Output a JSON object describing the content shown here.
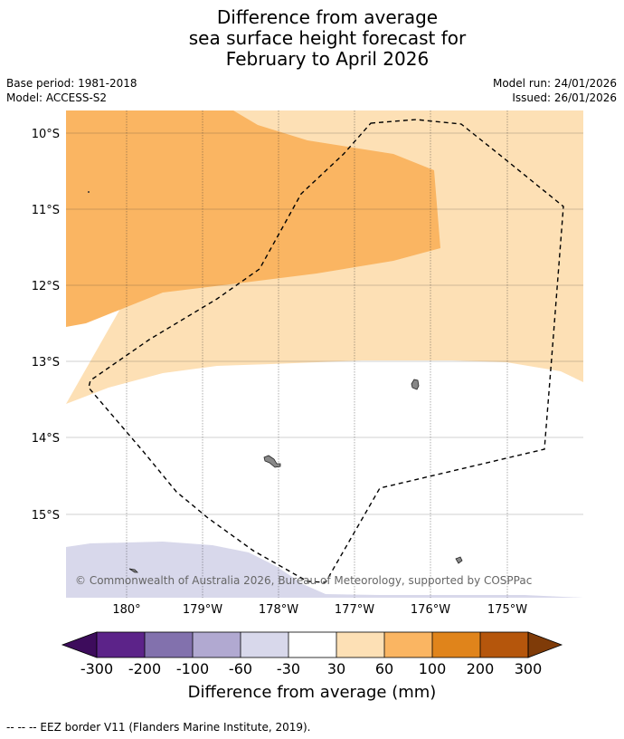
{
  "title": {
    "line1": "Difference from average",
    "line2": "sea surface height forecast for",
    "line3": "February to April 2026"
  },
  "info": {
    "base_period": "Base period: 1981-2018",
    "model": "Model: ACCESS-S2",
    "model_run": "Model run: 24/01/2026",
    "issued": "Issued: 26/01/2026"
  },
  "map": {
    "lat_labels": [
      "10°S",
      "11°S",
      "12°S",
      "13°S",
      "14°S",
      "15°S"
    ],
    "lon_labels": [
      "180°",
      "179°W",
      "178°W",
      "177°W",
      "176°W",
      "175°W"
    ],
    "copyright": "© Commonwealth of Australia 2026, Bureau of Meteorology, supported by COSPPac",
    "eez_label": "EEZ border"
  },
  "colorbar": {
    "ticks": [
      "-300",
      "-200",
      "-100",
      "-60",
      "-30",
      "30",
      "60",
      "100",
      "200",
      "300"
    ],
    "label": "Difference from average (mm)",
    "colors": {
      "below_min": "#3d0c5c",
      "bin_1": "#5c2389",
      "bin_2": "#8271ad",
      "bin_3": "#b1a9d1",
      "bin_4": "#d8d8eb",
      "bin_5": "#ffffff",
      "bin_6": "#fde0b5",
      "bin_7": "#fab562",
      "bin_8": "#e0841b",
      "bin_9": "#b5560c",
      "above_max": "#7f3b08"
    }
  },
  "footer": "--  --  -- EEZ border V11 (Flanders Marine Institute, 2019)."
}
